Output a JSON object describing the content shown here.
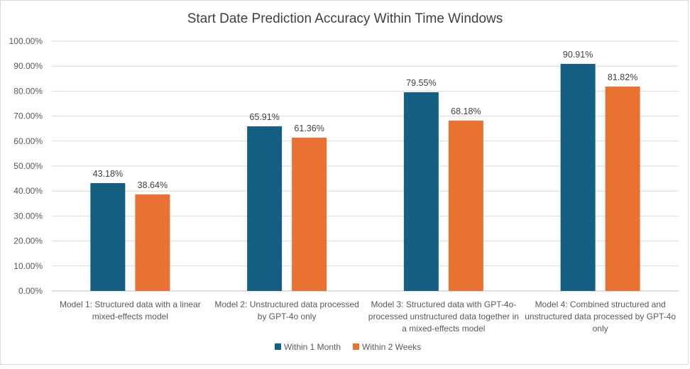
{
  "chart_data": {
    "type": "bar",
    "title": "Start Date Prediction Accuracy Within Time Windows",
    "xlabel": "",
    "ylabel": "",
    "ylim": [
      0,
      100
    ],
    "yticks": [
      "0.00%",
      "10.00%",
      "20.00%",
      "30.00%",
      "40.00%",
      "50.00%",
      "60.00%",
      "70.00%",
      "80.00%",
      "90.00%",
      "100.00%"
    ],
    "grid": true,
    "legend_position": "bottom",
    "categories": [
      [
        "Model 1: Structured data with a linear",
        "mixed-effects model"
      ],
      [
        "Model 2: Unstructured data processed",
        "by GPT-4o only"
      ],
      [
        "Model 3: Structured data with GPT-4o-",
        "processed unstructured data together in",
        "a mixed-effects model"
      ],
      [
        "Model 4: Combined structured and",
        "unstructured data processed by GPT-4o",
        "only"
      ]
    ],
    "series": [
      {
        "name": "Within 1 Month",
        "color": "#156082",
        "values": [
          43.18,
          65.91,
          79.55,
          90.91
        ],
        "labels": [
          "43.18%",
          "65.91%",
          "79.55%",
          "90.91%"
        ]
      },
      {
        "name": "Within 2 Weeks",
        "color": "#E97132",
        "values": [
          38.64,
          61.36,
          68.18,
          81.82
        ],
        "labels": [
          "38.64%",
          "61.36%",
          "68.18%",
          "81.82%"
        ]
      }
    ]
  }
}
